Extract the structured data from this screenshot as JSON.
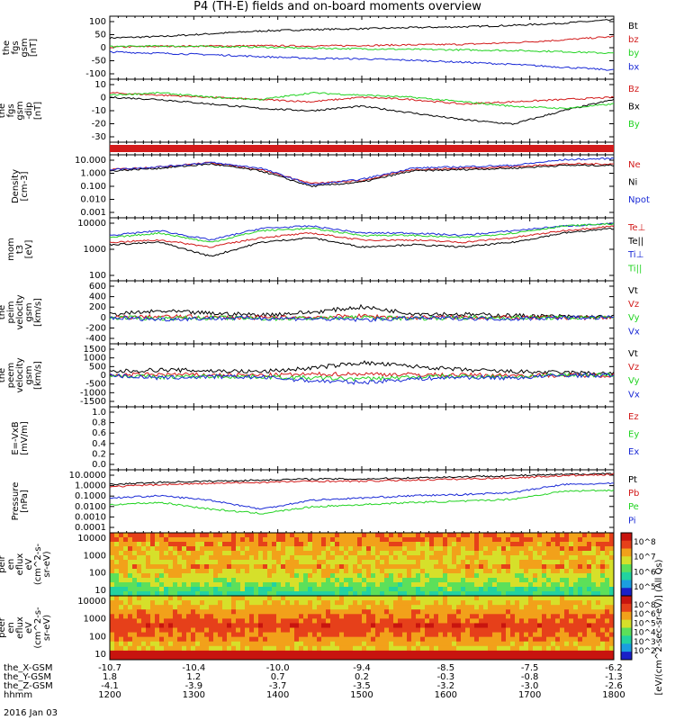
{
  "title": "P4 (TH-E) fields and on-board moments overview",
  "colors": {
    "black": "#000000",
    "red": "#d21a1a",
    "green": "#22d322",
    "blue": "#1a2ad6"
  },
  "chart_data": [
    {
      "id": "p1",
      "type": "line",
      "ylabel": [
        "the",
        "fgs",
        "gsm",
        "[nT]"
      ],
      "yticks": [
        "100",
        "50",
        "0",
        "-50",
        "-100"
      ],
      "ylim": [
        -100,
        100
      ],
      "series": [
        {
          "name": "Bt",
          "color": "black",
          "values": [
            35,
            40,
            50,
            60,
            65,
            68,
            72,
            75,
            80,
            88,
            100
          ]
        },
        {
          "name": "bz",
          "color": "red",
          "values": [
            2,
            5,
            6,
            7,
            6,
            8,
            10,
            12,
            18,
            28,
            40
          ]
        },
        {
          "name": "by",
          "color": "green",
          "values": [
            4,
            6,
            4,
            2,
            -2,
            -4,
            -6,
            -8,
            -10,
            -14,
            -20
          ]
        },
        {
          "name": "bx",
          "color": "blue",
          "values": [
            -15,
            -20,
            -25,
            -32,
            -38,
            -40,
            -45,
            -52,
            -60,
            -70,
            -80
          ]
        }
      ]
    },
    {
      "id": "p2",
      "type": "line",
      "ylabel": [
        "the",
        "fgs",
        "gsm",
        "-dip",
        "[nT]"
      ],
      "yticks": [
        "10",
        "0",
        "-10",
        "-20",
        "-30"
      ],
      "ylim": [
        -35,
        15
      ],
      "series": [
        {
          "name": "Bz",
          "color": "red",
          "values": [
            6,
            4,
            2,
            0,
            -2,
            2,
            0,
            -4,
            -2,
            0,
            2
          ]
        },
        {
          "name": "Bx",
          "color": "black",
          "values": [
            2,
            0,
            -4,
            -8,
            -10,
            -6,
            -12,
            -18,
            -22,
            -10,
            0
          ]
        },
        {
          "name": "By",
          "color": "green",
          "values": [
            4,
            6,
            2,
            0,
            6,
            4,
            2,
            -2,
            -6,
            -8,
            -4
          ]
        }
      ]
    },
    {
      "id": "p3",
      "type": "band"
    },
    {
      "id": "p4",
      "type": "line",
      "ylabel": [
        "Density",
        "[cm-3]"
      ],
      "yticks": [
        "10.000",
        "1.000",
        "0.100",
        "0.010",
        "0.001"
      ],
      "ylim": [
        -3,
        1
      ],
      "log": true,
      "series": [
        {
          "name": "Ne",
          "color": "red",
          "values": [
            0.2,
            0.4,
            0.7,
            0.2,
            -0.8,
            -0.6,
            0.2,
            0.3,
            0.4,
            0.6,
            0.6
          ]
        },
        {
          "name": "Ni",
          "color": "black",
          "values": [
            0.1,
            0.3,
            0.6,
            0.1,
            -1.0,
            -0.7,
            0.1,
            0.2,
            0.3,
            0.5,
            0.5
          ]
        },
        {
          "name": "Npot",
          "color": "blue",
          "values": [
            0.2,
            0.4,
            0.7,
            0.3,
            -0.9,
            -0.5,
            0.3,
            0.4,
            0.5,
            0.9,
            1.0
          ]
        }
      ]
    },
    {
      "id": "p5",
      "type": "line",
      "ylabel": [
        "mom",
        "t3",
        "[eV]"
      ],
      "yticks": [
        "10000",
        "1000",
        "100"
      ],
      "ylim": [
        1.7,
        4.1
      ],
      "log": true,
      "series": [
        {
          "name": "Te⊥",
          "color": "red",
          "values": [
            3.2,
            3.3,
            3.0,
            3.4,
            3.6,
            3.3,
            3.3,
            3.2,
            3.4,
            3.7,
            3.9
          ]
        },
        {
          "name": "Te||",
          "color": "black",
          "values": [
            3.1,
            3.2,
            2.6,
            3.2,
            3.4,
            3.0,
            3.1,
            3.0,
            3.2,
            3.6,
            3.8
          ]
        },
        {
          "name": "Ti⊥",
          "color": "blue",
          "values": [
            3.5,
            3.7,
            3.3,
            3.8,
            3.9,
            3.6,
            3.6,
            3.5,
            3.7,
            3.9,
            4.0
          ]
        },
        {
          "name": "Ti||",
          "color": "green",
          "values": [
            3.4,
            3.6,
            3.2,
            3.7,
            3.8,
            3.5,
            3.5,
            3.4,
            3.6,
            3.9,
            4.0
          ]
        }
      ]
    },
    {
      "id": "p6",
      "type": "line",
      "ylabel": [
        "the",
        "peim",
        "velocity",
        "gsm",
        "[km/s]"
      ],
      "yticks": [
        "600",
        "400",
        "200",
        "0",
        "-200",
        "-400"
      ],
      "ylim": [
        -420,
        620
      ],
      "series": [
        {
          "name": "Vt",
          "color": "black",
          "values": [
            60,
            120,
            80,
            50,
            100,
            200,
            80,
            60,
            40,
            20,
            10
          ]
        },
        {
          "name": "Vz",
          "color": "red",
          "values": [
            0,
            20,
            10,
            0,
            10,
            30,
            0,
            10,
            0,
            0,
            0
          ]
        },
        {
          "name": "Vy",
          "color": "green",
          "values": [
            0,
            -10,
            0,
            -20,
            -10,
            0,
            -10,
            0,
            0,
            0,
            0
          ]
        },
        {
          "name": "Vx",
          "color": "blue",
          "values": [
            0,
            -30,
            -10,
            -10,
            -20,
            -40,
            -10,
            -10,
            -20,
            0,
            0
          ]
        }
      ]
    },
    {
      "id": "p7",
      "type": "line",
      "ylabel": [
        "the",
        "peem",
        "velocity",
        "gsm",
        "[km/s]"
      ],
      "yticks": [
        "1500",
        "1000",
        "500",
        "0",
        "-500",
        "-1000",
        "-1500"
      ],
      "ylim": [
        -1550,
        1550
      ],
      "series": [
        {
          "name": "Vt",
          "color": "black",
          "values": [
            200,
            300,
            250,
            200,
            400,
            700,
            500,
            300,
            200,
            150,
            100
          ]
        },
        {
          "name": "Vz",
          "color": "red",
          "values": [
            0,
            50,
            20,
            0,
            50,
            80,
            40,
            20,
            0,
            0,
            0
          ]
        },
        {
          "name": "Vy",
          "color": "green",
          "values": [
            0,
            -100,
            -50,
            -80,
            -150,
            -200,
            -100,
            -50,
            -80,
            0,
            40
          ]
        },
        {
          "name": "Vx",
          "color": "blue",
          "values": [
            0,
            -150,
            -80,
            -100,
            -300,
            -400,
            -200,
            -100,
            -150,
            0,
            0
          ]
        }
      ]
    },
    {
      "id": "p8",
      "type": "line",
      "ylabel": [
        "E=-VxB",
        "[mV/m]"
      ],
      "yticks": [
        "1.0",
        "0.8",
        "0.6",
        "0.4",
        "0.2",
        "0.0"
      ],
      "ylim": [
        0,
        1
      ],
      "series": [
        {
          "name": "Ez",
          "color": "red",
          "values": []
        },
        {
          "name": "Ey",
          "color": "green",
          "values": []
        },
        {
          "name": "Ex",
          "color": "blue",
          "values": []
        }
      ]
    },
    {
      "id": "p9",
      "type": "line",
      "ylabel": [
        "Pressure",
        "[nPa]"
      ],
      "yticks": [
        "10.0000",
        "1.0000",
        "0.1000",
        "0.0100",
        "0.0010",
        "0.0001"
      ],
      "ylim": [
        -4,
        1
      ],
      "log": true,
      "series": [
        {
          "name": "Pt",
          "color": "black",
          "values": [
            0.0,
            0.2,
            0.3,
            0.4,
            0.5,
            0.5,
            0.6,
            0.7,
            0.8,
            0.9,
            1.0
          ]
        },
        {
          "name": "Pb",
          "color": "red",
          "values": [
            -0.2,
            0.0,
            0.1,
            0.2,
            0.3,
            0.3,
            0.4,
            0.5,
            0.6,
            0.8,
            0.9
          ]
        },
        {
          "name": "Pe",
          "color": "green",
          "values": [
            -1.8,
            -1.6,
            -2.2,
            -2.6,
            -2.0,
            -1.8,
            -1.6,
            -1.5,
            -1.3,
            -0.6,
            -0.5
          ]
        },
        {
          "name": "Pi",
          "color": "blue",
          "values": [
            -1.2,
            -1.0,
            -1.4,
            -2.2,
            -1.4,
            -1.2,
            -1.0,
            -0.9,
            -0.7,
            0.0,
            0.1
          ]
        }
      ]
    },
    {
      "id": "p10",
      "type": "heatmap",
      "ylabel": [
        "the",
        "peir",
        "en",
        "eflux",
        "eV",
        "(cm^2-s-",
        "sr-eV)"
      ],
      "yticks": [
        "10000",
        "1000",
        "100",
        "10"
      ],
      "zticks": [
        "10^8",
        "10^7",
        "10^6",
        "10^5"
      ]
    },
    {
      "id": "p11",
      "type": "heatmap",
      "ylabel": [
        "the",
        "peer",
        "en",
        "eflux",
        "eV",
        "(cm^2-s-",
        "sr-eV)"
      ],
      "yticks": [
        "10000",
        "1000",
        "100",
        "10"
      ],
      "zticks": [
        "10^8",
        "10^6",
        "10^5",
        "10^4",
        "10^3",
        "10^2"
      ]
    }
  ],
  "colorbar_label": "[eV/(cm^2-sec-sr-eV)] (All Qs)",
  "xaxis": {
    "rows": [
      {
        "label": "the_X-GSM",
        "values": [
          "-10.7",
          "-10.4",
          "-10.0",
          "-9.4",
          "-8.5",
          "-7.5",
          "-6.2"
        ]
      },
      {
        "label": "the_Y-GSM",
        "values": [
          "1.8",
          "1.2",
          "0.7",
          "0.2",
          "-0.3",
          "-0.8",
          "-1.3"
        ]
      },
      {
        "label": "the_Z-GSM",
        "values": [
          "-4.1",
          "-3.9",
          "-3.7",
          "-3.5",
          "-3.2",
          "-3.0",
          "-2.6"
        ]
      },
      {
        "label": "hhmm",
        "values": [
          "1200",
          "1300",
          "1400",
          "1500",
          "1600",
          "1700",
          "1800"
        ]
      }
    ],
    "date": "2016 Jan 03"
  }
}
